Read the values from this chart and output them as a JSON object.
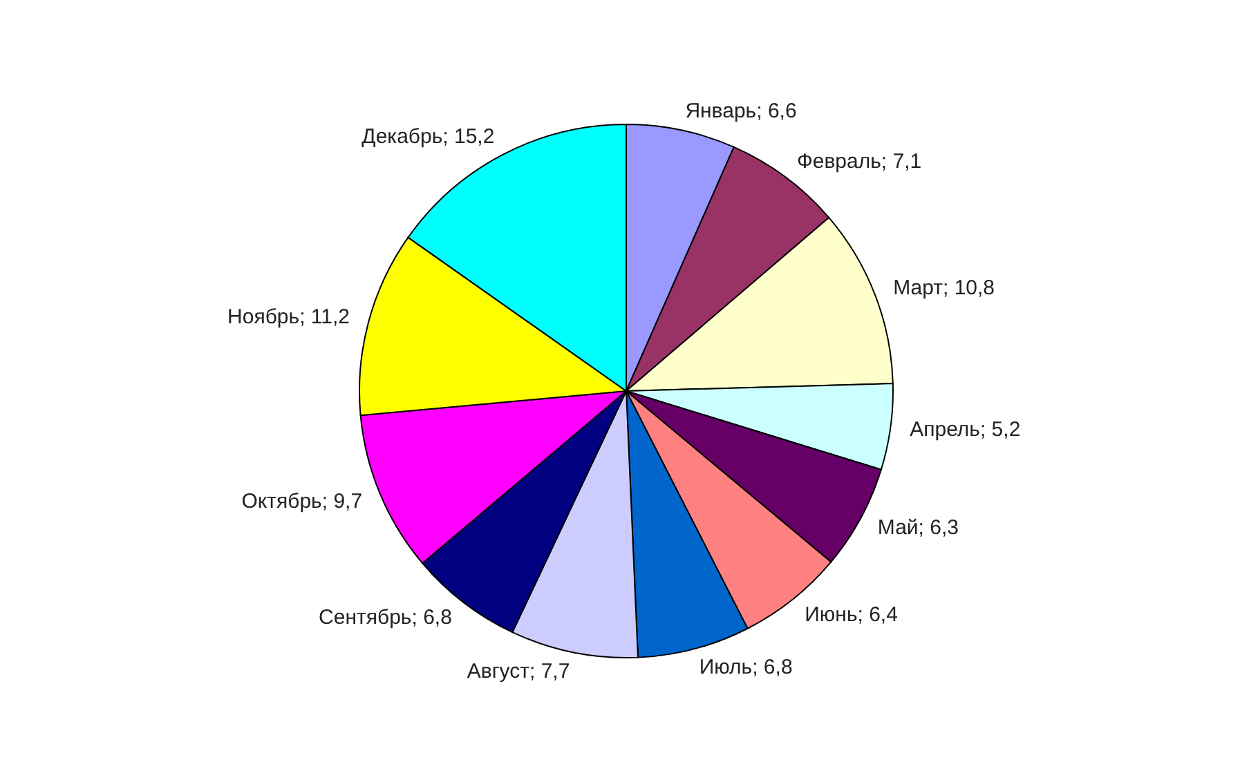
{
  "chart_data": {
    "type": "pie",
    "categories": [
      "Январь",
      "Февраль",
      "Март",
      "Апрель",
      "Май",
      "Июнь",
      "Июль",
      "Август",
      "Сентябрь",
      "Октябрь",
      "Ноябрь",
      "Декабрь"
    ],
    "values": [
      6.6,
      7.1,
      10.8,
      5.2,
      6.3,
      6.4,
      6.8,
      7.7,
      6.8,
      9.7,
      11.2,
      15.2
    ],
    "value_labels": [
      "6,6",
      "7,1",
      "10,8",
      "5,2",
      "6,3",
      "6,4",
      "6,8",
      "7,7",
      "6,8",
      "9,7",
      "11,2",
      "15,2"
    ],
    "colors": [
      "#9999ff",
      "#993366",
      "#ffffcc",
      "#ccffff",
      "#660066",
      "#ff8080",
      "#0066cc",
      "#ccccff",
      "#000080",
      "#ff00ff",
      "#ffff00",
      "#00ffff"
    ],
    "legend": false
  }
}
